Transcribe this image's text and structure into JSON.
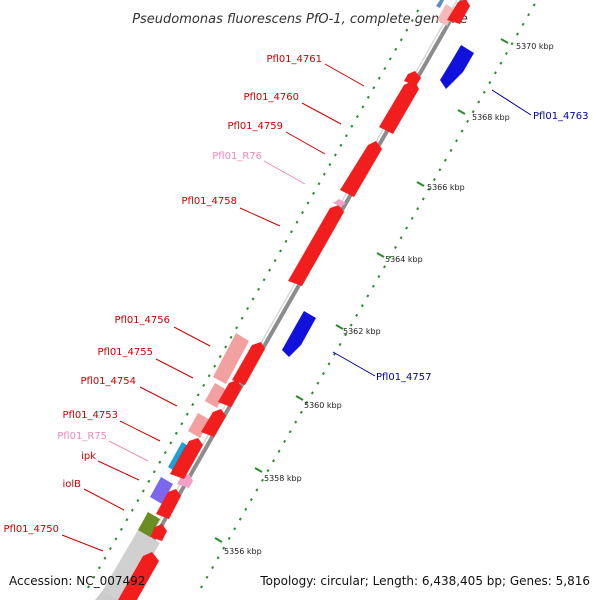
{
  "title": "Pseudomonas fluorescens PfO-1, complete genome",
  "footer": {
    "accession": "Accession: NC_007492",
    "topology": "Topology: circular; Length: 6,438,405 bp; Genes: 5,816"
  },
  "colors": {
    "backbone": "#8c8c8c",
    "gene_plus": "#f21d1d",
    "gene_minus": "#1111dd",
    "rna": "#f0a0c8",
    "tick": "#2a8c2a",
    "label_red": "#cc0000",
    "label_blue": "#0000aa",
    "label_pink": "#ee88bb"
  },
  "scale": {
    "ticks": [
      "5356 kbp",
      "5358 kbp",
      "5360 kbp",
      "5362 kbp",
      "5364 kbp",
      "5366 kbp",
      "5368 kbp",
      "5370 kbp"
    ]
  },
  "labels": {
    "pfl01_4761": "Pfl01_4761",
    "pfl01_4760": "Pfl01_4760",
    "pfl01_4759": "Pfl01_4759",
    "pfl01_r76": "Pfl01_R76",
    "pfl01_4758": "Pfl01_4758",
    "pfl01_4756": "Pfl01_4756",
    "pfl01_4755": "Pfl01_4755",
    "pfl01_4754": "Pfl01_4754",
    "pfl01_4753": "Pfl01_4753",
    "pfl01_r75": "Pfl01_R75",
    "ipk": "ipk",
    "iolb": "iolB",
    "pfl01_4750": "Pfl01_4750",
    "pfl01_4763": "Pfl01_4763",
    "pfl01_4757": "Pfl01_4757"
  }
}
